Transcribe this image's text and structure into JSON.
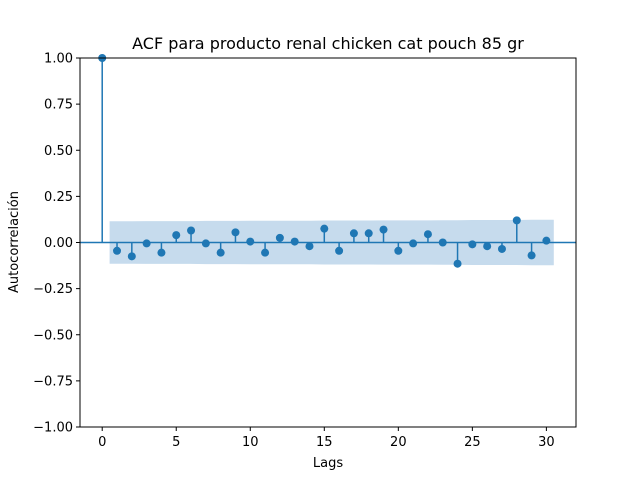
{
  "chart_data": {
    "type": "stem",
    "title": "ACF para producto renal chicken cat pouch 85 gr",
    "xlabel": "Lags",
    "ylabel": "Autocorrelación",
    "xlim": [
      -1.5,
      32
    ],
    "ylim": [
      -1.0,
      1.0
    ],
    "xticks": [
      0,
      5,
      10,
      15,
      20,
      25,
      30
    ],
    "xtick_labels": [
      "0",
      "5",
      "10",
      "15",
      "20",
      "25",
      "30"
    ],
    "yticks": [
      -1.0,
      -0.75,
      -0.5,
      -0.25,
      0.0,
      0.25,
      0.5,
      0.75,
      1.0
    ],
    "ytick_labels": [
      "−1.00",
      "−0.75",
      "−0.50",
      "−0.25",
      "0.00",
      "0.25",
      "0.50",
      "0.75",
      "1.00"
    ],
    "grid": false,
    "colors": {
      "stem": "#1f77b4",
      "confidence_band": "#c6dbed"
    },
    "series": [
      {
        "lags": [
          0,
          1,
          2,
          3,
          4,
          5,
          6,
          7,
          8,
          9,
          10,
          11,
          12,
          13,
          14,
          15,
          16,
          17,
          18,
          19,
          20,
          21,
          22,
          23,
          24,
          25,
          26,
          27,
          28,
          29,
          30
        ],
        "values": [
          1.0,
          -0.045,
          -0.075,
          -0.005,
          -0.055,
          0.04,
          0.065,
          -0.005,
          -0.055,
          0.055,
          0.005,
          -0.055,
          0.025,
          0.005,
          -0.02,
          0.075,
          -0.045,
          0.05,
          0.05,
          0.07,
          -0.045,
          -0.005,
          0.045,
          0.0,
          -0.115,
          -0.01,
          -0.02,
          -0.035,
          0.12,
          -0.07,
          0.01
        ]
      }
    ],
    "confidence_band": {
      "lags": [
        0.5,
        1,
        2,
        3,
        4,
        5,
        6,
        7,
        8,
        9,
        10,
        11,
        12,
        13,
        14,
        15,
        16,
        17,
        18,
        19,
        20,
        21,
        22,
        23,
        24,
        25,
        26,
        27,
        28,
        29,
        30,
        30.5
      ],
      "upper": [
        0.115,
        0.115,
        0.115,
        0.116,
        0.116,
        0.116,
        0.116,
        0.117,
        0.117,
        0.117,
        0.118,
        0.118,
        0.118,
        0.118,
        0.118,
        0.119,
        0.119,
        0.119,
        0.119,
        0.12,
        0.12,
        0.12,
        0.12,
        0.121,
        0.121,
        0.122,
        0.122,
        0.122,
        0.122,
        0.123,
        0.123,
        0.123
      ]
    }
  }
}
